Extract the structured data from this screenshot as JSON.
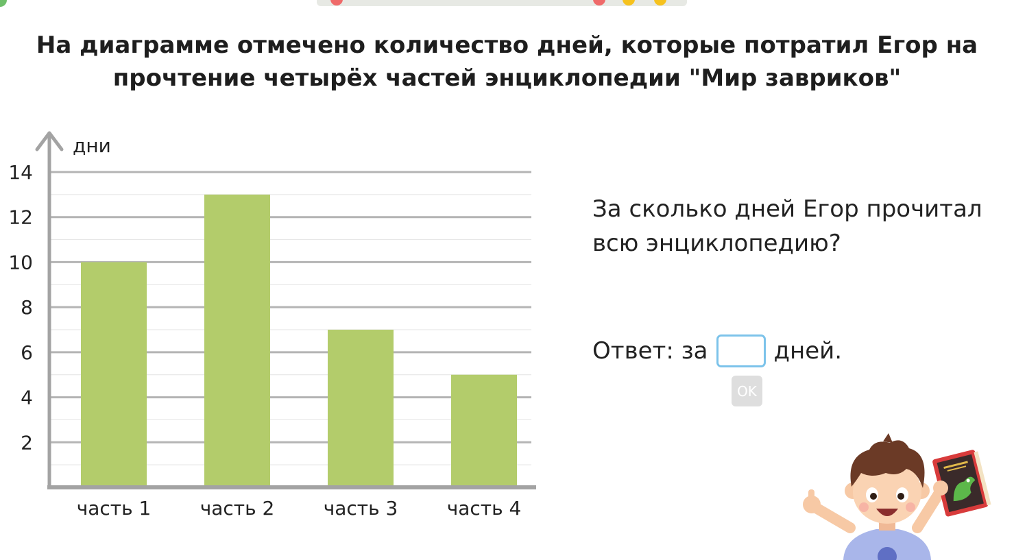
{
  "question": {
    "title_line1": "На диаграмме отмечено количество дней, которые потратил Егор на",
    "title_line2": "прочтение четырёх частей энциклопедии \"Мир завриков\"",
    "prompt": "За сколько дней Егор прочитал всю энциклопедию?"
  },
  "answer": {
    "prefix": "Ответ: за",
    "suffix": "дней.",
    "value": "",
    "ok_label": "OK"
  },
  "colors": {
    "bar": "#b3cc6b",
    "axis": "#a3a3a3",
    "grid_major": "#b4b4b4",
    "grid_minor": "#e3e3e3",
    "input_border": "#7cc3ea",
    "button_disabled": "#dedede"
  },
  "illustration": {
    "character": "boy-with-book",
    "book_icon": "dragon-book"
  },
  "chart_data": {
    "type": "bar",
    "categories": [
      "часть 1",
      "часть 2",
      "часть 3",
      "часть 4"
    ],
    "values": [
      10,
      13,
      7,
      5
    ],
    "ylabel": "дни",
    "yticks": [
      2,
      4,
      6,
      8,
      10,
      12,
      14
    ],
    "ylim": [
      0,
      14
    ],
    "grid": true
  }
}
